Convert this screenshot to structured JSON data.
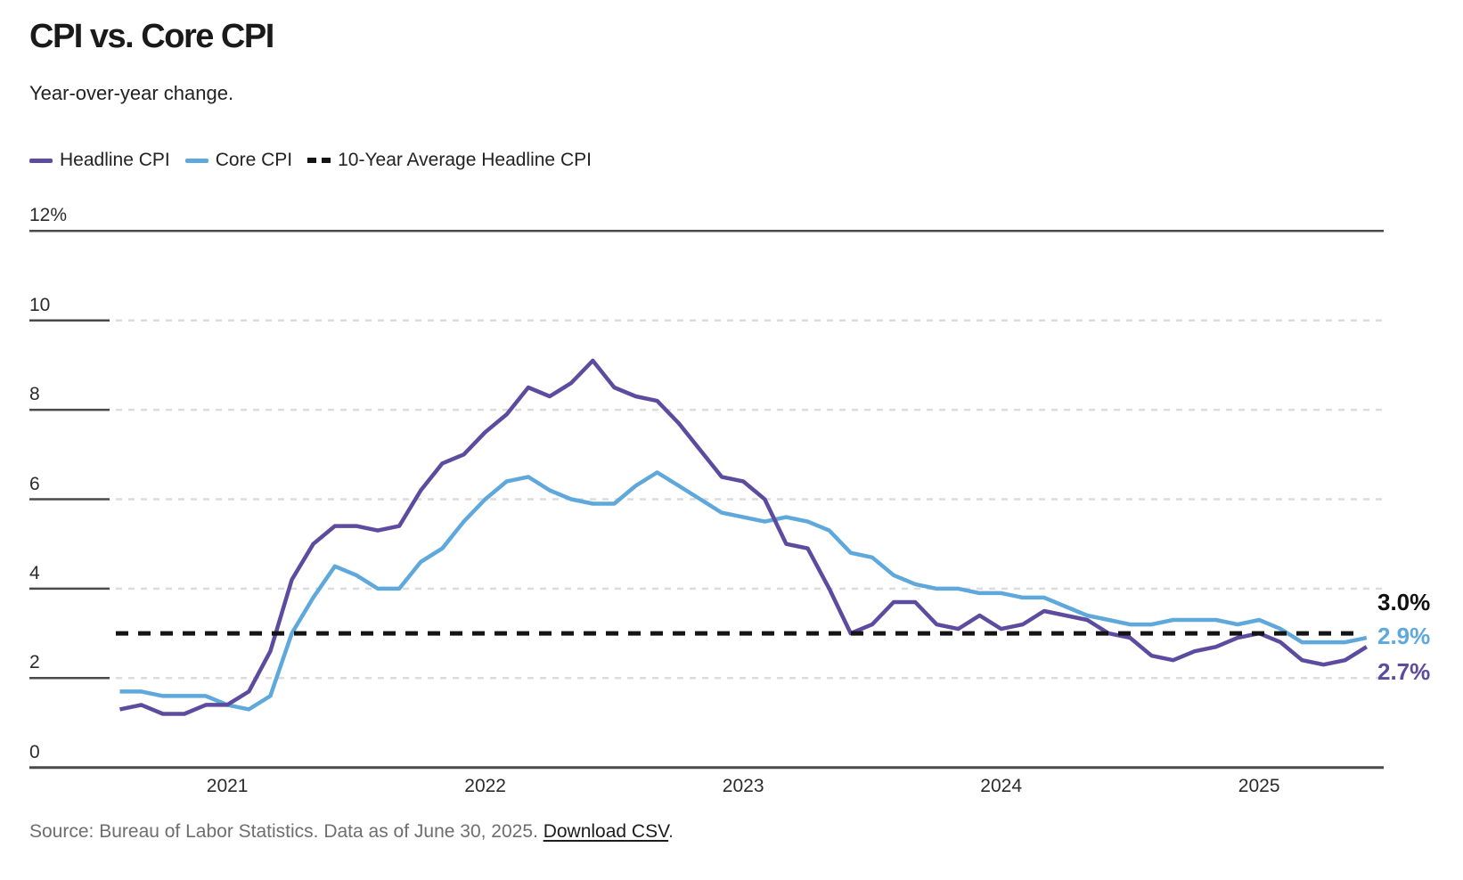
{
  "header": {
    "title": "CPI vs. Core CPI",
    "subtitle": "Year-over-year change."
  },
  "legend": [
    {
      "label": "Headline CPI",
      "color": "#5C4B9E",
      "style": "solid"
    },
    {
      "label": "Core CPI",
      "color": "#5FA8DC",
      "style": "solid"
    },
    {
      "label": "10-Year Average Headline CPI",
      "color": "#141414",
      "style": "dashed"
    }
  ],
  "chart_data": {
    "type": "line",
    "frequency": "monthly",
    "x_start": "2020-08",
    "x_end": "2025-06",
    "ylim": [
      0,
      12
    ],
    "grid": "horizontal-dashed",
    "legend_position": "top-left",
    "yticks": [
      {
        "value": 12,
        "label": "12%"
      },
      {
        "value": 10,
        "label": "10"
      },
      {
        "value": 8,
        "label": "8"
      },
      {
        "value": 6,
        "label": "6"
      },
      {
        "value": 4,
        "label": "4"
      },
      {
        "value": 2,
        "label": "2"
      },
      {
        "value": 0,
        "label": "0"
      }
    ],
    "xticks": [
      {
        "label": "2021",
        "index": 5
      },
      {
        "label": "2022",
        "index": 17
      },
      {
        "label": "2023",
        "index": 29
      },
      {
        "label": "2024",
        "index": 41
      },
      {
        "label": "2025",
        "index": 53
      }
    ],
    "series": [
      {
        "name": "Headline CPI",
        "color": "#5C4B9E",
        "values": [
          1.3,
          1.4,
          1.2,
          1.2,
          1.4,
          1.4,
          1.7,
          2.6,
          4.2,
          5.0,
          5.4,
          5.4,
          5.3,
          5.4,
          6.2,
          6.8,
          7.0,
          7.5,
          7.9,
          8.5,
          8.3,
          8.6,
          9.1,
          8.5,
          8.3,
          8.2,
          7.7,
          7.1,
          6.5,
          6.4,
          6.0,
          5.0,
          4.9,
          4.0,
          3.0,
          3.2,
          3.7,
          3.7,
          3.2,
          3.1,
          3.4,
          3.1,
          3.2,
          3.5,
          3.4,
          3.3,
          3.0,
          2.9,
          2.5,
          2.4,
          2.6,
          2.7,
          2.9,
          3.0,
          2.8,
          2.4,
          2.3,
          2.4,
          2.7
        ]
      },
      {
        "name": "Core CPI",
        "color": "#5FA8DC",
        "values": [
          1.7,
          1.7,
          1.6,
          1.6,
          1.6,
          1.4,
          1.3,
          1.6,
          3.0,
          3.8,
          4.5,
          4.3,
          4.0,
          4.0,
          4.6,
          4.9,
          5.5,
          6.0,
          6.4,
          6.5,
          6.2,
          6.0,
          5.9,
          5.9,
          6.3,
          6.6,
          6.3,
          6.0,
          5.7,
          5.6,
          5.5,
          5.6,
          5.5,
          5.3,
          4.8,
          4.7,
          4.3,
          4.1,
          4.0,
          4.0,
          3.9,
          3.9,
          3.8,
          3.8,
          3.6,
          3.4,
          3.3,
          3.2,
          3.2,
          3.3,
          3.3,
          3.3,
          3.2,
          3.3,
          3.1,
          2.8,
          2.8,
          2.8,
          2.9
        ]
      }
    ],
    "average_line": {
      "label": "10-Year Average Headline CPI",
      "value": 3.0,
      "color": "#141414"
    },
    "end_labels": [
      {
        "text": "3.0%",
        "color": "#111111",
        "series": "10-Year Average Headline CPI"
      },
      {
        "text": "2.9%",
        "color": "#5FA8DC",
        "series": "Core CPI"
      },
      {
        "text": "2.7%",
        "color": "#5C4B9E",
        "series": "Headline CPI"
      }
    ]
  },
  "footer": {
    "source_text": "Source: Bureau of Labor Statistics. Data as of June 30, 2025. ",
    "link_label": "Download CSV",
    "suffix": "."
  }
}
